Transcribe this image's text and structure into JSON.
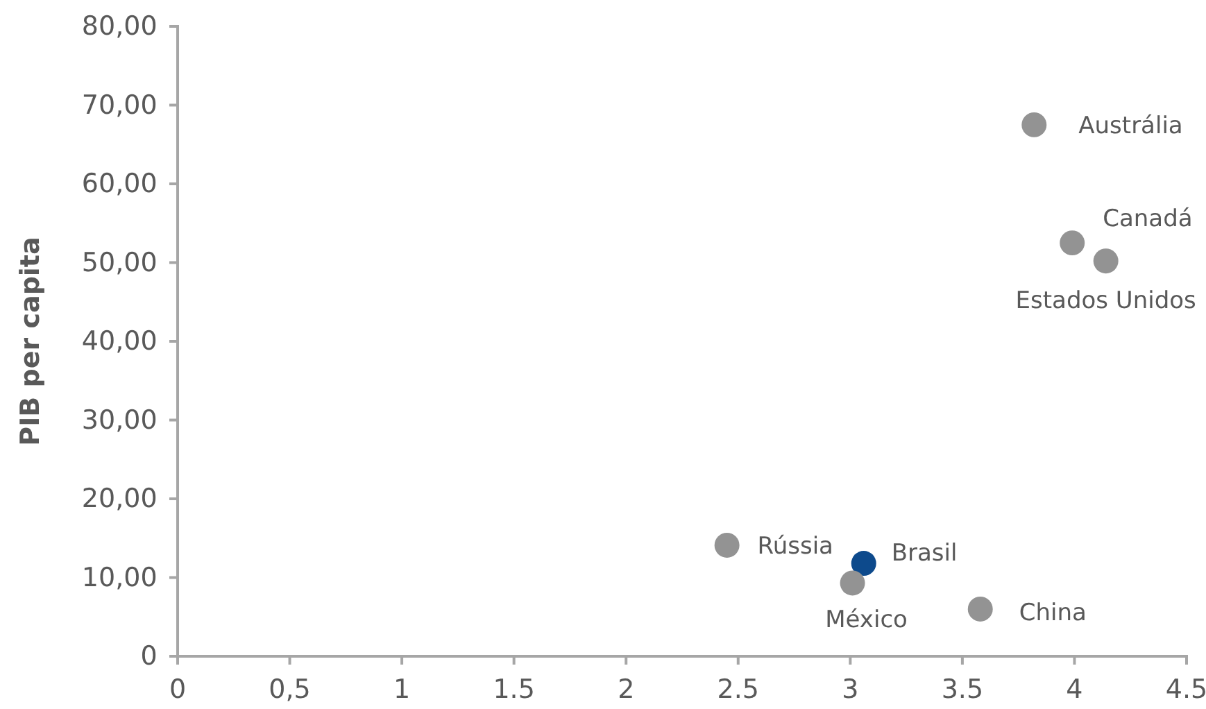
{
  "chart_data": {
    "type": "scatter",
    "ylabel": "PIB per capita",
    "x": [
      3.82,
      3.99,
      4.14,
      2.45,
      3.06,
      3.01,
      3.58
    ],
    "values": [
      67.5,
      52.5,
      50.2,
      14.1,
      11.8,
      9.3,
      6.0
    ],
    "colors": [
      "#939393",
      "#939393",
      "#939393",
      "#939393",
      "#0d4a8c",
      "#939393",
      "#939393"
    ],
    "xlim": [
      0,
      4.5
    ],
    "xticks": [
      0,
      {
        "value": 0.5,
        "label": "0,5"
      },
      1,
      1.5,
      2,
      2.5,
      3,
      3.5,
      4,
      4.5
    ],
    "ylim": [
      0,
      80
    ],
    "yticks": [
      0,
      {
        "value": 10,
        "label": "10,00"
      },
      {
        "value": 20,
        "label": "20,00"
      },
      {
        "value": 30,
        "label": "30,00"
      },
      {
        "value": 40,
        "label": "40,00"
      },
      {
        "value": 50,
        "label": "50,00"
      },
      {
        "value": 60,
        "label": "60,00"
      },
      {
        "value": 70,
        "label": "70,00"
      },
      {
        "value": 80,
        "label": "80,00"
      }
    ],
    "grid": false,
    "marker": "circle",
    "annotations": [
      {
        "text": "Austrália",
        "x": 3.82,
        "y": 67.5
      },
      {
        "text": "Canadá",
        "x": 3.99,
        "y": 52.5
      },
      {
        "text": "Estados Unidos",
        "x": 4.14,
        "y": 50.2
      },
      {
        "text": "Rússia",
        "x": 2.45,
        "y": 14.1
      },
      {
        "text": "Brasil",
        "x": 3.06,
        "y": 11.8
      },
      {
        "text": "México",
        "x": 3.01,
        "y": 9.3
      },
      {
        "text": "China",
        "x": 3.58,
        "y": 6.0
      }
    ]
  }
}
